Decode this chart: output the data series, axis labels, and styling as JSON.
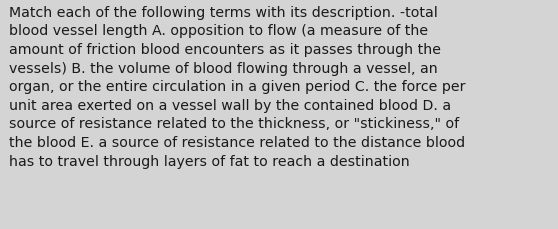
{
  "lines": [
    "Match each of the following terms with its description. -total",
    "blood vessel length A. opposition to flow (a measure of the",
    "amount of friction blood encounters as it passes through the",
    "vessels) B. the volume of blood flowing through a vessel, an",
    "organ, or the entire circulation in a given period C. the force per",
    "unit area exerted on a vessel wall by the contained blood D. a",
    "source of resistance related to the thickness, or \"stickiness,\" of",
    "the blood E. a source of resistance related to the distance blood",
    "has to travel through layers of fat to reach a destination"
  ],
  "background_color": "#d4d4d4",
  "text_color": "#1a1a1a",
  "font_size": 10.2,
  "fig_width": 5.58,
  "fig_height": 2.3,
  "dpi": 100
}
